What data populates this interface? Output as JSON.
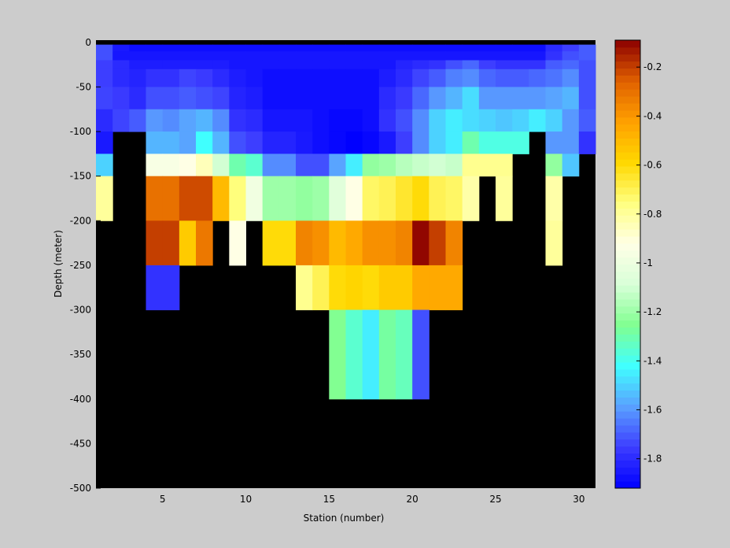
{
  "chart_data": {
    "type": "heatmap",
    "xlabel": "Station (number)",
    "ylabel": "Depth (meter)",
    "x": [
      1,
      2,
      3,
      4,
      5,
      6,
      7,
      8,
      9,
      10,
      11,
      12,
      13,
      14,
      15,
      16,
      17,
      18,
      19,
      20,
      21,
      22,
      23,
      24,
      25,
      26,
      27,
      28,
      29,
      30,
      31
    ],
    "y": [
      2.5,
      -2.5,
      -10,
      -20,
      -30,
      -50,
      -75,
      -100,
      -125,
      -150,
      -200,
      -250,
      -300,
      -400,
      -500
    ],
    "z": [
      [
        null,
        null,
        null,
        null,
        null,
        null,
        null,
        null,
        null,
        null,
        null,
        null,
        null,
        null,
        null,
        null,
        null,
        null,
        null,
        null,
        null,
        null,
        null,
        null,
        null,
        null,
        null,
        null,
        null,
        null
      ],
      [
        -1.72,
        -1.85,
        -1.88,
        -1.88,
        -1.88,
        -1.88,
        -1.88,
        -1.88,
        -1.88,
        -1.88,
        -1.88,
        -1.88,
        -1.88,
        -1.88,
        -1.88,
        -1.88,
        -1.88,
        -1.88,
        -1.88,
        -1.88,
        -1.88,
        -1.88,
        -1.88,
        -1.88,
        -1.88,
        -1.88,
        -1.88,
        -1.8,
        -1.75,
        -1.7
      ],
      [
        -1.72,
        -1.86,
        -1.86,
        -1.86,
        -1.86,
        -1.86,
        -1.86,
        -1.86,
        -1.86,
        -1.86,
        -1.86,
        -1.86,
        -1.86,
        -1.86,
        -1.86,
        -1.86,
        -1.86,
        -1.86,
        -1.86,
        -1.86,
        -1.86,
        -1.86,
        -1.86,
        -1.86,
        -1.86,
        -1.86,
        -1.86,
        -1.78,
        -1.72,
        -1.7
      ],
      [
        -1.75,
        -1.8,
        -1.84,
        -1.84,
        -1.84,
        -1.84,
        -1.84,
        -1.84,
        -1.86,
        -1.86,
        -1.86,
        -1.86,
        -1.86,
        -1.86,
        -1.86,
        -1.86,
        -1.86,
        -1.86,
        -1.82,
        -1.8,
        -1.78,
        -1.72,
        -1.68,
        -1.75,
        -1.78,
        -1.78,
        -1.78,
        -1.7,
        -1.68,
        -1.72
      ],
      [
        -1.75,
        -1.8,
        -1.82,
        -1.78,
        -1.78,
        -1.74,
        -1.76,
        -1.8,
        -1.84,
        -1.86,
        -1.88,
        -1.88,
        -1.88,
        -1.88,
        -1.88,
        -1.88,
        -1.88,
        -1.84,
        -1.8,
        -1.74,
        -1.7,
        -1.64,
        -1.62,
        -1.68,
        -1.7,
        -1.7,
        -1.68,
        -1.66,
        -1.62,
        -1.72
      ],
      [
        -1.74,
        -1.76,
        -1.8,
        -1.72,
        -1.72,
        -1.7,
        -1.72,
        -1.74,
        -1.82,
        -1.84,
        -1.88,
        -1.88,
        -1.88,
        -1.88,
        -1.88,
        -1.88,
        -1.88,
        -1.8,
        -1.76,
        -1.68,
        -1.6,
        -1.55,
        -1.48,
        -1.6,
        -1.6,
        -1.6,
        -1.6,
        -1.58,
        -1.55,
        -1.72
      ],
      [
        -1.8,
        -1.74,
        -1.7,
        -1.6,
        -1.62,
        -1.58,
        -1.55,
        -1.62,
        -1.78,
        -1.8,
        -1.86,
        -1.86,
        -1.86,
        -1.88,
        -1.9,
        -1.9,
        -1.88,
        -1.78,
        -1.72,
        -1.62,
        -1.5,
        -1.45,
        -1.48,
        -1.5,
        -1.52,
        -1.5,
        -1.45,
        -1.5,
        -1.6,
        -1.7
      ],
      [
        -1.85,
        null,
        null,
        -1.55,
        -1.55,
        -1.58,
        -1.42,
        -1.55,
        -1.72,
        -1.75,
        -1.82,
        -1.82,
        -1.85,
        -1.88,
        -1.9,
        -1.92,
        -1.9,
        -1.85,
        -1.75,
        -1.62,
        -1.5,
        -1.45,
        -1.3,
        -1.38,
        -1.38,
        -1.38,
        null,
        -1.6,
        -1.6,
        -1.78
      ],
      [
        -1.5,
        null,
        null,
        -0.95,
        -0.95,
        -0.92,
        -0.85,
        -1.1,
        -1.3,
        -1.35,
        -1.62,
        -1.62,
        -1.72,
        -1.72,
        -1.58,
        -1.45,
        -1.22,
        -1.2,
        -1.15,
        -1.12,
        -1.1,
        -1.12,
        -0.78,
        -0.78,
        -0.78,
        null,
        null,
        -1.22,
        -1.52,
        null
      ],
      [
        -0.8,
        null,
        null,
        -0.3,
        -0.3,
        -0.22,
        -0.22,
        -0.5,
        -0.75,
        -0.98,
        -1.2,
        -1.2,
        -1.22,
        -1.2,
        -1.05,
        -0.92,
        -0.72,
        -0.7,
        -0.65,
        -0.6,
        -0.7,
        -0.72,
        -0.82,
        null,
        -0.8,
        null,
        null,
        -0.82,
        null,
        null
      ],
      [
        null,
        null,
        null,
        -0.2,
        -0.2,
        -0.55,
        -0.32,
        null,
        -0.92,
        null,
        -0.6,
        -0.6,
        -0.35,
        -0.38,
        -0.5,
        -0.45,
        -0.38,
        -0.38,
        -0.35,
        -0.1,
        -0.2,
        -0.35,
        null,
        null,
        null,
        null,
        null,
        -0.8,
        null,
        null
      ],
      [
        null,
        null,
        null,
        -1.78,
        -1.78,
        null,
        null,
        null,
        null,
        null,
        null,
        null,
        -0.78,
        -0.7,
        -0.6,
        -0.58,
        -0.6,
        -0.55,
        -0.55,
        -0.45,
        -0.45,
        -0.45,
        null,
        null,
        null,
        null,
        null,
        null,
        null,
        null
      ],
      [
        null,
        null,
        null,
        null,
        null,
        null,
        null,
        null,
        null,
        null,
        null,
        null,
        null,
        null,
        -1.25,
        -1.35,
        -1.45,
        -1.28,
        -1.32,
        -1.72,
        null,
        null,
        null,
        null,
        null,
        null,
        null,
        null,
        null,
        null
      ],
      [
        null,
        null,
        null,
        null,
        null,
        null,
        null,
        null,
        null,
        null,
        null,
        null,
        null,
        null,
        null,
        null,
        null,
        null,
        null,
        null,
        null,
        null,
        null,
        null,
        null,
        null,
        null,
        null,
        null,
        null
      ]
    ],
    "xlim": [
      1,
      31
    ],
    "ylim": [
      -500,
      2.5
    ],
    "xticks": [
      5,
      10,
      15,
      20,
      25,
      30
    ],
    "yticks": [
      0,
      -50,
      -100,
      -150,
      -200,
      -250,
      -300,
      -350,
      -400,
      -450,
      -500
    ],
    "clim": [
      -1.92,
      -0.09
    ],
    "cticks": [
      -1.8,
      -1.6,
      -1.4,
      -1.2,
      -1,
      -0.8,
      -0.6,
      -0.4,
      -0.2
    ],
    "colormap": [
      "#0000ff",
      "#3c3cff",
      "#5aa0ff",
      "#40ffff",
      "#80ff90",
      "#d8ffd8",
      "#ffffe6",
      "#ffff80",
      "#ffd800",
      "#ffa000",
      "#e06000",
      "#8c0000"
    ],
    "missing_color": "#000000"
  }
}
